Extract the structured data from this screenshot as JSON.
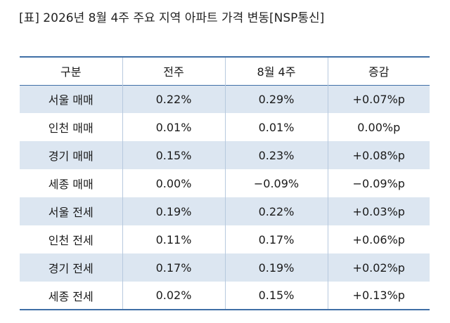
{
  "caption": "[표] 2026년 8월 4주 주요 지역 아파트 가격 변동[NSP통신]",
  "columns": [
    "구분",
    "전주",
    "8월 4주",
    "증감"
  ],
  "rows": [
    [
      "서울 매매",
      "0.22%",
      "0.29%",
      "+0.07%p"
    ],
    [
      "인천 매매",
      "0.01%",
      "0.01%",
      "0.00%p"
    ],
    [
      "경기 매매",
      "0.15%",
      "0.23%",
      "+0.08%p"
    ],
    [
      "세종 매매",
      "0.00%",
      "−0.09%",
      "−0.09%p"
    ],
    [
      "서울 전세",
      "0.19%",
      "0.22%",
      "+0.03%p"
    ],
    [
      "인천 전세",
      "0.11%",
      "0.17%",
      "+0.06%p"
    ],
    [
      "경기 전세",
      "0.17%",
      "0.19%",
      "+0.02%p"
    ],
    [
      "세종 전세",
      "0.02%",
      "0.15%",
      "+0.13%p"
    ]
  ],
  "colors": {
    "rule": "#3f6fa6",
    "row_shade": "#dce6f1",
    "divider": "#b7c9de"
  }
}
